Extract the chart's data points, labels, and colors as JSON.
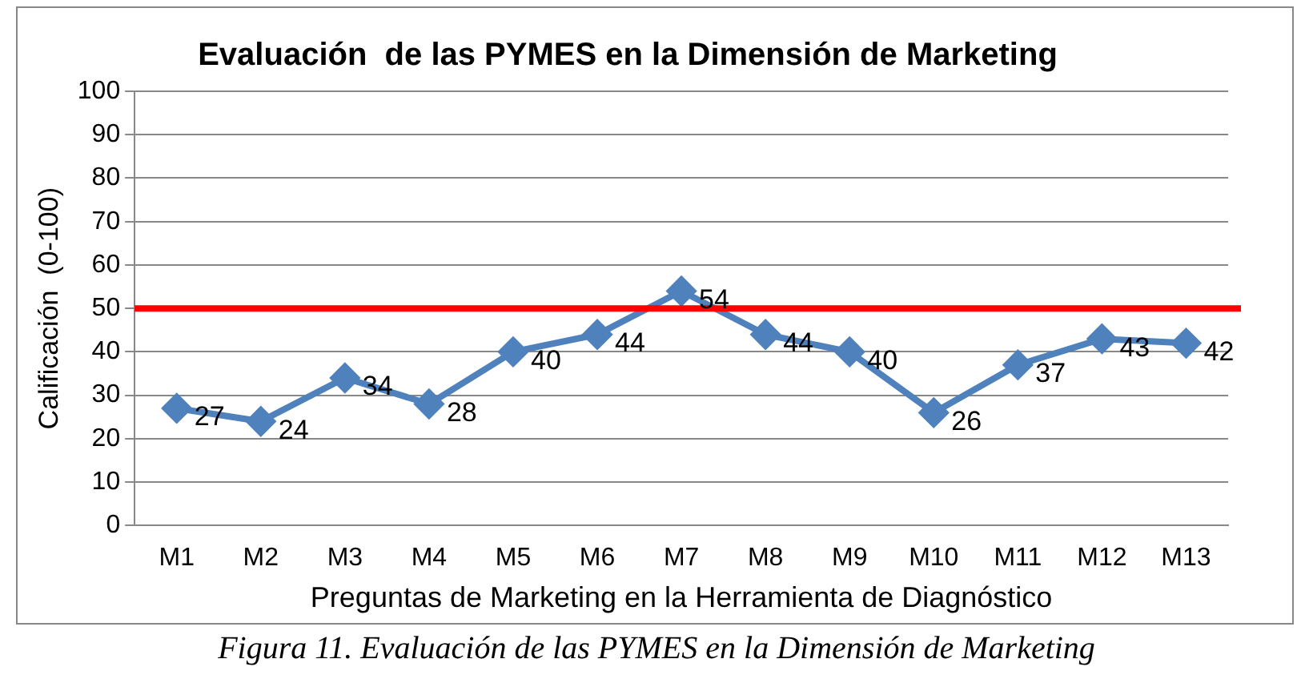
{
  "chart_data": {
    "type": "line",
    "title": "Evaluación  de las PYMES en la Dimensión de Marketing",
    "xlabel": "Preguntas de Marketing en la Herramienta de Diagnóstico",
    "ylabel": "Calificación  (0-100)",
    "categories": [
      "M1",
      "M2",
      "M3",
      "M4",
      "M5",
      "M6",
      "M7",
      "M8",
      "M9",
      "M10",
      "M11",
      "M12",
      "M13"
    ],
    "series": [
      {
        "color": "#4f81bd",
        "values": [
          27,
          24,
          34,
          28,
          40,
          44,
          54,
          44,
          40,
          26,
          37,
          43,
          42
        ]
      }
    ],
    "ylim": [
      0,
      100
    ],
    "yticks": [
      0,
      10,
      20,
      30,
      40,
      50,
      60,
      70,
      80,
      90,
      100
    ],
    "grid": "y",
    "legend": false,
    "marker": "diamond",
    "data_labels": true,
    "ref_lines": [
      {
        "axis": "y",
        "value": 50,
        "color": "#ff0000"
      }
    ],
    "annotations": [
      "Figura 11. Evaluación de las PYMES en la Dimensión de Marketing"
    ]
  }
}
